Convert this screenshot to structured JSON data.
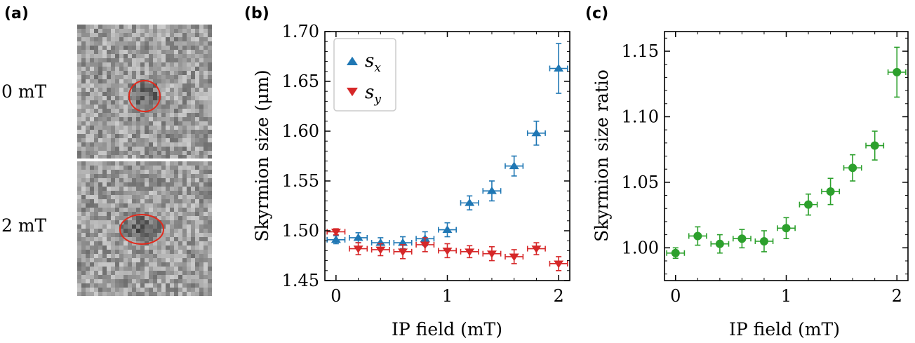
{
  "panels": {
    "a": {
      "label": "(a)",
      "images": [
        {
          "label": "0 mT",
          "ellipse_color": "#e32a1c"
        },
        {
          "label": "2 mT",
          "ellipse_color": "#e32a1c"
        }
      ]
    }
  },
  "chart_data": [
    {
      "type": "scatter",
      "panel_label": "(b)",
      "title": "",
      "xlabel": "IP field (mT)",
      "ylabel": "Skyrmion size (μm)",
      "xlim": [
        -0.1,
        2.1
      ],
      "ylim": [
        1.45,
        1.7
      ],
      "xticks": [
        0,
        1,
        2
      ],
      "yticks": [
        1.45,
        1.5,
        1.55,
        1.6,
        1.65,
        1.7
      ],
      "ytick_labels": [
        "1.45",
        "1.50",
        "1.55",
        "1.60",
        "1.65",
        "1.70"
      ],
      "grid": false,
      "legend_position": "top-left",
      "series": [
        {
          "name": "s",
          "sub": "x",
          "marker": "triangle-up",
          "color": "#1f77b4",
          "x": [
            0,
            0.2,
            0.4,
            0.6,
            0.8,
            1.0,
            1.2,
            1.4,
            1.6,
            1.8,
            2.0
          ],
          "y": [
            1.491,
            1.493,
            1.488,
            1.488,
            1.492,
            1.501,
            1.528,
            1.54,
            1.565,
            1.598,
            1.663
          ],
          "yerr": [
            0.004,
            0.005,
            0.005,
            0.006,
            0.007,
            0.007,
            0.007,
            0.01,
            0.01,
            0.012,
            0.025
          ],
          "xerr": 0.08
        },
        {
          "name": "s",
          "sub": "y",
          "marker": "triangle-down",
          "color": "#d62728",
          "x": [
            0,
            0.2,
            0.4,
            0.6,
            0.8,
            1.0,
            1.2,
            1.4,
            1.6,
            1.8,
            2.0
          ],
          "y": [
            1.499,
            1.482,
            1.481,
            1.479,
            1.486,
            1.48,
            1.479,
            1.477,
            1.474,
            1.482,
            1.467
          ],
          "yerr": [
            0.003,
            0.006,
            0.006,
            0.007,
            0.007,
            0.007,
            0.006,
            0.007,
            0.007,
            0.006,
            0.007
          ],
          "xerr": 0.08
        }
      ]
    },
    {
      "type": "scatter",
      "panel_label": "(c)",
      "title": "",
      "xlabel": "IP field (mT)",
      "ylabel": "Skyrmion size ratio",
      "xlim": [
        -0.1,
        2.1
      ],
      "ylim": [
        0.975,
        1.165
      ],
      "xticks": [
        0,
        1,
        2
      ],
      "yticks": [
        1.0,
        1.05,
        1.1,
        1.15
      ],
      "ytick_labels": [
        "1.00",
        "1.05",
        "1.10",
        "1.15"
      ],
      "grid": false,
      "series": [
        {
          "marker": "circle",
          "color": "#2ca02c",
          "x": [
            0,
            0.2,
            0.4,
            0.6,
            0.8,
            1.0,
            1.2,
            1.4,
            1.6,
            1.8,
            2.0
          ],
          "y": [
            0.996,
            1.009,
            1.003,
            1.007,
            1.005,
            1.015,
            1.033,
            1.043,
            1.061,
            1.078,
            1.134
          ],
          "yerr": [
            0.004,
            0.007,
            0.007,
            0.007,
            0.008,
            0.008,
            0.008,
            0.01,
            0.01,
            0.011,
            0.019
          ],
          "xerr": 0.08
        }
      ]
    }
  ]
}
